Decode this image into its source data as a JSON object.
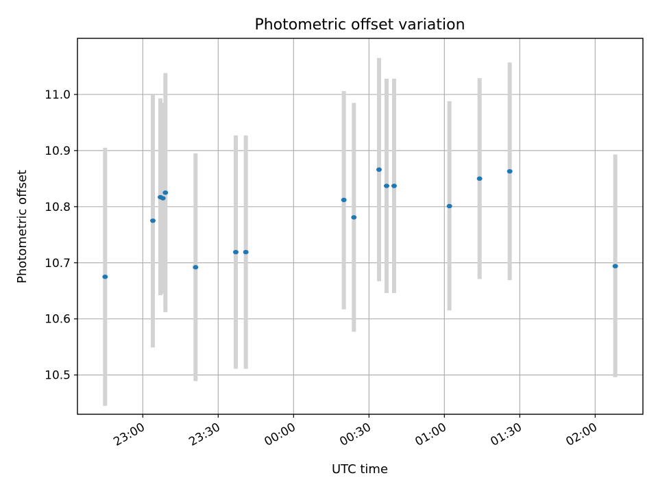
{
  "chart_data": {
    "type": "scatter",
    "title": "Photometric offset variation",
    "xlabel": "UTC time",
    "ylabel": "Photometric offset",
    "grid": true,
    "colors": {
      "point": "#1f77b4",
      "errorbar": "#d3d3d3"
    },
    "xlim": [
      "22:34",
      "02:19"
    ],
    "ylim": [
      10.43,
      11.1
    ],
    "x_ticks": [
      {
        "time": "23:00",
        "label": "23:00"
      },
      {
        "time": "23:30",
        "label": "23:30"
      },
      {
        "time": "00:00",
        "label": "00:00"
      },
      {
        "time": "00:30",
        "label": "00:30"
      },
      {
        "time": "01:00",
        "label": "01:00"
      },
      {
        "time": "01:30",
        "label": "01:30"
      },
      {
        "time": "02:00",
        "label": "02:00"
      }
    ],
    "y_ticks": [
      10.5,
      10.6,
      10.7,
      10.8,
      10.9,
      11.0
    ],
    "y_tick_labels": [
      "10.5",
      "10.6",
      "10.7",
      "10.8",
      "10.9",
      "11.0"
    ],
    "points": [
      {
        "time": "22:45",
        "y": 10.675,
        "ylow": 10.445,
        "yhigh": 10.905
      },
      {
        "time": "23:04",
        "y": 10.775,
        "ylow": 10.549,
        "yhigh": 11.0
      },
      {
        "time": "23:07",
        "y": 10.817,
        "ylow": 10.642,
        "yhigh": 10.993
      },
      {
        "time": "23:08",
        "y": 10.815,
        "ylow": 10.645,
        "yhigh": 10.985
      },
      {
        "time": "23:09",
        "y": 10.825,
        "ylow": 10.612,
        "yhigh": 11.038
      },
      {
        "time": "23:21",
        "y": 10.692,
        "ylow": 10.489,
        "yhigh": 10.895
      },
      {
        "time": "23:37",
        "y": 10.719,
        "ylow": 10.511,
        "yhigh": 10.927
      },
      {
        "time": "23:41",
        "y": 10.719,
        "ylow": 10.511,
        "yhigh": 10.927
      },
      {
        "time": "00:20",
        "y": 10.812,
        "ylow": 10.617,
        "yhigh": 11.006
      },
      {
        "time": "00:24",
        "y": 10.781,
        "ylow": 10.577,
        "yhigh": 10.985
      },
      {
        "time": "00:34",
        "y": 10.866,
        "ylow": 10.667,
        "yhigh": 11.065
      },
      {
        "time": "00:37",
        "y": 10.837,
        "ylow": 10.646,
        "yhigh": 11.028
      },
      {
        "time": "00:40",
        "y": 10.837,
        "ylow": 10.646,
        "yhigh": 11.028
      },
      {
        "time": "01:02",
        "y": 10.801,
        "ylow": 10.615,
        "yhigh": 10.988
      },
      {
        "time": "01:14",
        "y": 10.85,
        "ylow": 10.671,
        "yhigh": 11.029
      },
      {
        "time": "01:26",
        "y": 10.863,
        "ylow": 10.669,
        "yhigh": 11.057
      },
      {
        "time": "02:08",
        "y": 10.694,
        "ylow": 10.496,
        "yhigh": 10.893
      }
    ]
  }
}
